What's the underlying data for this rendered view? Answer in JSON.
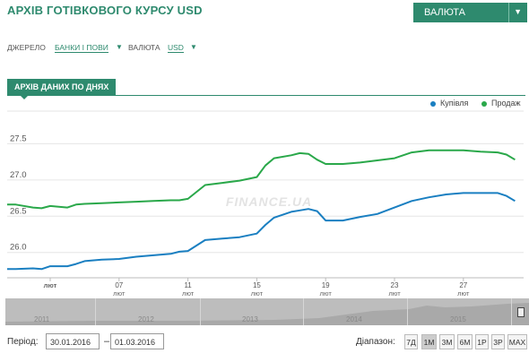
{
  "title": "АРХІВ ГОТІВКОВОГО КУРСУ USD",
  "currency_button": {
    "label": "ВАЛЮТА"
  },
  "filters": {
    "source_label": "ДЖЕРЕЛО",
    "source_value": "БАНКИ І ПОВИ",
    "currency_label": "ВАЛЮТА",
    "currency_value": "USD"
  },
  "tab": {
    "label": "АРХІВ ДАНИХ ПО ДНЯХ"
  },
  "colors": {
    "accent": "#2e8a6e",
    "buy": "#1a7fc1",
    "sell": "#2aa84a"
  },
  "chart_data": {
    "type": "line",
    "watermark": "FINANCE.UA",
    "ylim": [
      25.65,
      27.95
    ],
    "yticks": [
      26.0,
      26.5,
      27.0,
      27.5
    ],
    "x_ticks": [
      {
        "day": 3,
        "num": "",
        "label": "лют"
      },
      {
        "day": 7,
        "num": "07",
        "label": "лют"
      },
      {
        "day": 11,
        "num": "11",
        "label": "лют"
      },
      {
        "day": 15,
        "num": "15",
        "label": "лют"
      },
      {
        "day": 19,
        "num": "19",
        "label": "лют"
      },
      {
        "day": 23,
        "num": "23",
        "label": "лют"
      },
      {
        "day": 27,
        "num": "27",
        "label": "лют"
      }
    ],
    "xlim": [
      0.5,
      30.5
    ],
    "series": [
      {
        "name": "Купівля",
        "color": "#1a7fc1",
        "x": [
          0.5,
          1,
          2,
          2.5,
          3,
          4,
          4.5,
          5,
          6,
          7,
          8,
          9,
          10,
          10.5,
          11,
          12,
          13,
          14,
          15,
          15.5,
          16,
          17,
          17.5,
          18,
          18.5,
          19,
          19.5,
          20,
          21,
          22,
          23,
          24,
          25,
          26,
          27,
          28,
          29,
          29.5,
          30
        ],
        "y": [
          25.77,
          25.77,
          25.78,
          25.77,
          25.81,
          25.81,
          25.84,
          25.88,
          25.9,
          25.91,
          25.94,
          25.96,
          25.98,
          26.01,
          26.02,
          26.17,
          26.19,
          26.21,
          26.26,
          26.38,
          26.48,
          26.56,
          26.58,
          26.6,
          26.57,
          26.44,
          26.44,
          26.44,
          26.49,
          26.53,
          26.62,
          26.71,
          26.76,
          26.8,
          26.82,
          26.82,
          26.82,
          26.78,
          26.71
        ]
      },
      {
        "name": "Продаж",
        "color": "#2aa84a",
        "x": [
          0.5,
          1,
          2,
          2.5,
          3,
          4,
          4.5,
          5,
          6,
          7,
          8,
          9,
          10,
          10.5,
          11,
          12,
          13,
          14,
          15,
          15.5,
          16,
          17,
          17.5,
          18,
          18.5,
          19,
          19.5,
          20,
          21,
          22,
          23,
          24,
          25,
          26,
          27,
          28,
          29,
          29.5,
          30
        ],
        "y": [
          26.66,
          26.66,
          26.62,
          26.61,
          26.64,
          26.62,
          26.66,
          26.67,
          26.68,
          26.69,
          26.7,
          26.71,
          26.72,
          26.72,
          26.74,
          26.93,
          26.96,
          26.99,
          27.04,
          27.2,
          27.3,
          27.34,
          27.37,
          27.36,
          27.28,
          27.22,
          27.22,
          27.22,
          27.24,
          27.27,
          27.3,
          27.38,
          27.41,
          27.41,
          27.41,
          27.39,
          27.38,
          27.35,
          27.28
        ]
      }
    ]
  },
  "navigator": {
    "years": [
      "2011",
      "2012",
      "2013",
      "2014",
      "2015"
    ]
  },
  "controls": {
    "period_label": "Період:",
    "date_from": "30.01.2016",
    "dash": "–",
    "date_to": "01.03.2016",
    "range_label": "Діапазон:",
    "ranges": [
      "7Д",
      "1М",
      "3М",
      "6М",
      "1Р",
      "3Р",
      "MAX"
    ],
    "active_range": "1М"
  }
}
